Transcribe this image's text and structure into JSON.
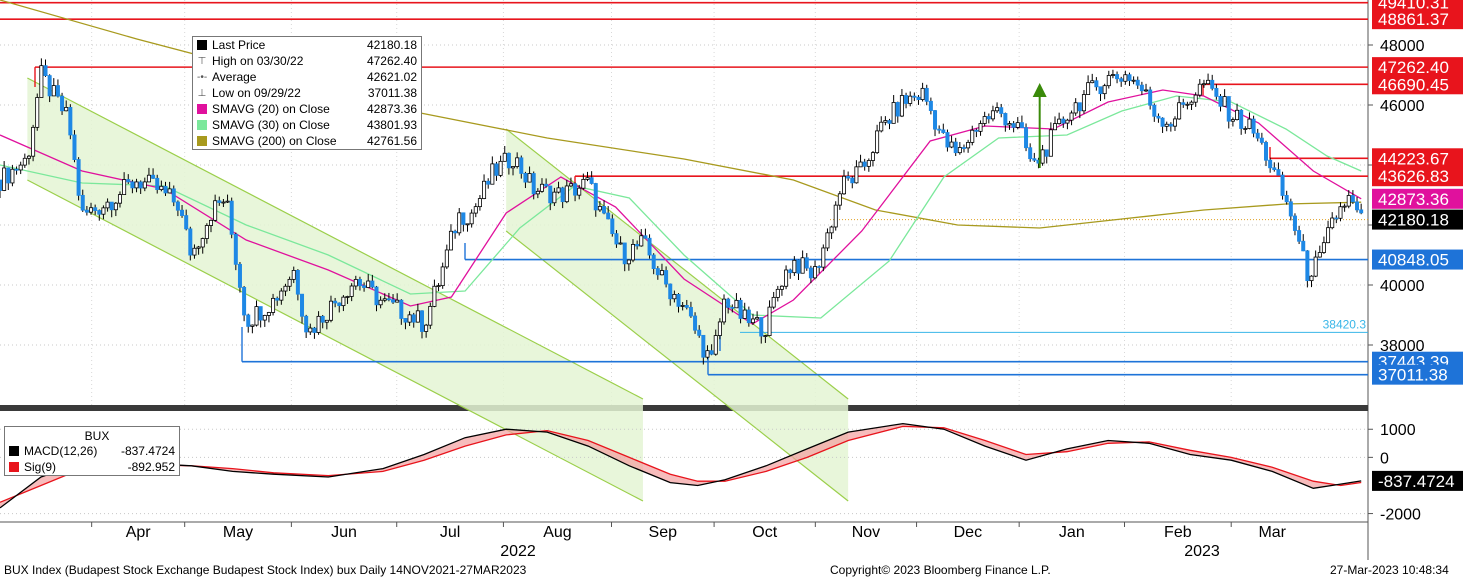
{
  "chart_data": [
    {
      "type": "candlestick",
      "title": "",
      "ylim": [
        36000,
        49500
      ],
      "y_ticks": [
        38000,
        40000,
        42000,
        44000,
        46000,
        48000
      ],
      "y_tick_labels": [
        "38000",
        "40000",
        "",
        "",
        "46000",
        "48000"
      ],
      "x_labels": [
        "Apr",
        "May",
        "Jun",
        "Jul",
        "Aug",
        "Sep",
        "Oct",
        "Nov",
        "Dec",
        "Jan",
        "Feb",
        "Mar"
      ],
      "year_labels": [
        "2022",
        "2023"
      ],
      "legend": [
        {
          "glyph": "box",
          "color": "#000000",
          "label": "Last Price",
          "value": "42180.18"
        },
        {
          "glyph": "T",
          "color": "#555555",
          "label": "High on 03/30/22",
          "value": "47262.40"
        },
        {
          "glyph": "avg",
          "color": "#555555",
          "label": "Average",
          "value": "42621.02"
        },
        {
          "glyph": "L",
          "color": "#555555",
          "label": "Low on 09/29/22",
          "value": "37011.38"
        },
        {
          "glyph": "box",
          "color": "#e0119d",
          "label": "SMAVG (20)  on Close",
          "value": "42873.36"
        },
        {
          "glyph": "box",
          "color": "#7be89b",
          "label": "SMAVG (30)  on Close",
          "value": "43801.93"
        },
        {
          "glyph": "box",
          "color": "#a89a1e",
          "label": "SMAVG (200)  on Close",
          "value": "42761.56"
        }
      ],
      "price_levels": [
        {
          "value": 49410.31,
          "label": "49410.31",
          "color": "#e8141c"
        },
        {
          "value": 48861.37,
          "label": "48861.37",
          "color": "#e8141c"
        },
        {
          "value": 47262.4,
          "label": "47262.40",
          "color": "#e8141c"
        },
        {
          "value": 46690.45,
          "label": "46690.45",
          "color": "#e8141c"
        },
        {
          "value": 44223.67,
          "label": "44223.67",
          "color": "#e8141c"
        },
        {
          "value": 43626.83,
          "label": "43626.83",
          "color": "#e8141c"
        },
        {
          "value": 40848.05,
          "label": "40848.05",
          "color": "#1e73d8"
        },
        {
          "value": 38420.3,
          "label": "38420.3",
          "color": "#39b6e8"
        },
        {
          "value": 37443.39,
          "label": "37443.39",
          "color": "#1e73d8"
        },
        {
          "value": 37011.38,
          "label": "37011.38",
          "color": "#1e73d8"
        }
      ],
      "last_labels": [
        {
          "value": 42873.36,
          "label": "42873.36",
          "color": "#e0119d"
        },
        {
          "value": 42180.18,
          "label": "42180.18",
          "color": "#000000"
        }
      ],
      "close_series": [
        {
          "t": 0.0,
          "v": 43500
        },
        {
          "t": 0.02,
          "v": 44200
        },
        {
          "t": 0.03,
          "v": 47000
        },
        {
          "t": 0.05,
          "v": 45500
        },
        {
          "t": 0.06,
          "v": 42300
        },
        {
          "t": 0.08,
          "v": 42800
        },
        {
          "t": 0.1,
          "v": 43500
        },
        {
          "t": 0.115,
          "v": 43200
        },
        {
          "t": 0.13,
          "v": 42700
        },
        {
          "t": 0.14,
          "v": 41000
        },
        {
          "t": 0.155,
          "v": 42500
        },
        {
          "t": 0.165,
          "v": 42900
        },
        {
          "t": 0.18,
          "v": 38800
        },
        {
          "t": 0.2,
          "v": 39500
        },
        {
          "t": 0.215,
          "v": 40500
        },
        {
          "t": 0.225,
          "v": 38400
        },
        {
          "t": 0.24,
          "v": 39200
        },
        {
          "t": 0.26,
          "v": 40200
        },
        {
          "t": 0.28,
          "v": 39400
        },
        {
          "t": 0.3,
          "v": 39000
        },
        {
          "t": 0.31,
          "v": 38700
        },
        {
          "t": 0.32,
          "v": 40000
        },
        {
          "t": 0.335,
          "v": 42300
        },
        {
          "t": 0.345,
          "v": 42400
        },
        {
          "t": 0.36,
          "v": 43700
        },
        {
          "t": 0.375,
          "v": 44300
        },
        {
          "t": 0.39,
          "v": 43200
        },
        {
          "t": 0.41,
          "v": 43000
        },
        {
          "t": 0.43,
          "v": 43400
        },
        {
          "t": 0.44,
          "v": 42300
        },
        {
          "t": 0.455,
          "v": 41000
        },
        {
          "t": 0.47,
          "v": 41400
        },
        {
          "t": 0.485,
          "v": 40100
        },
        {
          "t": 0.5,
          "v": 39300
        },
        {
          "t": 0.51,
          "v": 38300
        },
        {
          "t": 0.52,
          "v": 37400
        },
        {
          "t": 0.53,
          "v": 39600
        },
        {
          "t": 0.545,
          "v": 38800
        },
        {
          "t": 0.56,
          "v": 38600
        },
        {
          "t": 0.57,
          "v": 40100
        },
        {
          "t": 0.58,
          "v": 40800
        },
        {
          "t": 0.595,
          "v": 40300
        },
        {
          "t": 0.605,
          "v": 41700
        },
        {
          "t": 0.615,
          "v": 43300
        },
        {
          "t": 0.63,
          "v": 43800
        },
        {
          "t": 0.645,
          "v": 45300
        },
        {
          "t": 0.66,
          "v": 46100
        },
        {
          "t": 0.675,
          "v": 46400
        },
        {
          "t": 0.69,
          "v": 44800
        },
        {
          "t": 0.7,
          "v": 44300
        },
        {
          "t": 0.715,
          "v": 45400
        },
        {
          "t": 0.73,
          "v": 45800
        },
        {
          "t": 0.745,
          "v": 45200
        },
        {
          "t": 0.755,
          "v": 43900
        },
        {
          "t": 0.765,
          "v": 44600
        },
        {
          "t": 0.78,
          "v": 45700
        },
        {
          "t": 0.795,
          "v": 46400
        },
        {
          "t": 0.81,
          "v": 46900
        },
        {
          "t": 0.825,
          "v": 47000
        },
        {
          "t": 0.835,
          "v": 46500
        },
        {
          "t": 0.845,
          "v": 45700
        },
        {
          "t": 0.855,
          "v": 45400
        },
        {
          "t": 0.865,
          "v": 46000
        },
        {
          "t": 0.88,
          "v": 46700
        },
        {
          "t": 0.89,
          "v": 46200
        },
        {
          "t": 0.9,
          "v": 45700
        },
        {
          "t": 0.915,
          "v": 45200
        },
        {
          "t": 0.925,
          "v": 44400
        },
        {
          "t": 0.935,
          "v": 43300
        },
        {
          "t": 0.945,
          "v": 42200
        },
        {
          "t": 0.955,
          "v": 40400
        },
        {
          "t": 0.965,
          "v": 40800
        },
        {
          "t": 0.975,
          "v": 42200
        },
        {
          "t": 0.985,
          "v": 42900
        },
        {
          "t": 0.995,
          "v": 42180
        }
      ],
      "sma20": [
        [
          0,
          45000
        ],
        [
          0.06,
          43800
        ],
        [
          0.12,
          43200
        ],
        [
          0.18,
          41500
        ],
        [
          0.24,
          40500
        ],
        [
          0.3,
          39300
        ],
        [
          0.33,
          39600
        ],
        [
          0.37,
          42400
        ],
        [
          0.41,
          43600
        ],
        [
          0.45,
          42600
        ],
        [
          0.5,
          40200
        ],
        [
          0.55,
          38700
        ],
        [
          0.58,
          39500
        ],
        [
          0.63,
          41800
        ],
        [
          0.68,
          44800
        ],
        [
          0.72,
          45300
        ],
        [
          0.77,
          45200
        ],
        [
          0.81,
          46100
        ],
        [
          0.85,
          46500
        ],
        [
          0.88,
          46300
        ],
        [
          0.92,
          45400
        ],
        [
          0.96,
          43800
        ],
        [
          0.995,
          42873
        ]
      ],
      "sma30": [
        [
          0,
          44000
        ],
        [
          0.06,
          43400
        ],
        [
          0.12,
          43300
        ],
        [
          0.18,
          42000
        ],
        [
          0.24,
          41000
        ],
        [
          0.3,
          39700
        ],
        [
          0.34,
          39800
        ],
        [
          0.38,
          41900
        ],
        [
          0.42,
          43300
        ],
        [
          0.46,
          42900
        ],
        [
          0.5,
          41000
        ],
        [
          0.55,
          39000
        ],
        [
          0.6,
          38900
        ],
        [
          0.65,
          40800
        ],
        [
          0.69,
          43600
        ],
        [
          0.73,
          44900
        ],
        [
          0.78,
          45000
        ],
        [
          0.82,
          45800
        ],
        [
          0.86,
          46300
        ],
        [
          0.9,
          46100
        ],
        [
          0.94,
          45200
        ],
        [
          0.97,
          44300
        ],
        [
          0.995,
          43801
        ]
      ],
      "sma200": [
        [
          0,
          49500
        ],
        [
          0.1,
          48200
        ],
        [
          0.2,
          47000
        ],
        [
          0.3,
          45800
        ],
        [
          0.4,
          44900
        ],
        [
          0.5,
          44200
        ],
        [
          0.58,
          43500
        ],
        [
          0.64,
          42500
        ],
        [
          0.7,
          42000
        ],
        [
          0.76,
          41900
        ],
        [
          0.82,
          42200
        ],
        [
          0.88,
          42500
        ],
        [
          0.94,
          42700
        ],
        [
          0.995,
          42761
        ]
      ],
      "channels": [
        {
          "from": [
            0.02,
            46900
          ],
          "to": [
            0.47,
            36200
          ],
          "width": 3400
        },
        {
          "from": [
            0.37,
            45200
          ],
          "to": [
            0.62,
            36200
          ],
          "width": 3400
        }
      ],
      "arrow": {
        "t": 0.76,
        "from": 43900,
        "to": 46600,
        "color": "#3a8a0a"
      },
      "dotted_level": {
        "value": 42180,
        "color": "#e0a020"
      }
    },
    {
      "type": "line",
      "title": "BUX",
      "ylim": [
        -2300,
        1400
      ],
      "y_ticks": [
        -2000,
        0,
        1000
      ],
      "y_tick_labels": [
        "-2000",
        "0",
        "1000"
      ],
      "legend": [
        {
          "glyph": "box",
          "color": "#000000",
          "label": "MACD(12,26)",
          "value": "-837.4724"
        },
        {
          "glyph": "box",
          "color": "#e8141c",
          "label": "Sig(9)",
          "value": "-892.952"
        }
      ],
      "last_labels": [
        {
          "value": -837.4724,
          "label": "-837.4724",
          "color": "#000000"
        }
      ],
      "macd": [
        [
          0,
          -1800
        ],
        [
          0.03,
          -700
        ],
        [
          0.06,
          -200
        ],
        [
          0.1,
          -200
        ],
        [
          0.14,
          -300
        ],
        [
          0.17,
          -500
        ],
        [
          0.2,
          -600
        ],
        [
          0.24,
          -700
        ],
        [
          0.28,
          -400
        ],
        [
          0.31,
          100
        ],
        [
          0.34,
          700
        ],
        [
          0.37,
          1000
        ],
        [
          0.4,
          900
        ],
        [
          0.43,
          400
        ],
        [
          0.46,
          -300
        ],
        [
          0.49,
          -900
        ],
        [
          0.51,
          -1000
        ],
        [
          0.53,
          -800
        ],
        [
          0.56,
          -300
        ],
        [
          0.59,
          300
        ],
        [
          0.62,
          900
        ],
        [
          0.66,
          1200
        ],
        [
          0.69,
          1000
        ],
        [
          0.72,
          400
        ],
        [
          0.75,
          -100
        ],
        [
          0.78,
          300
        ],
        [
          0.81,
          600
        ],
        [
          0.84,
          500
        ],
        [
          0.87,
          100
        ],
        [
          0.9,
          -100
        ],
        [
          0.93,
          -500
        ],
        [
          0.96,
          -1100
        ],
        [
          0.98,
          -950
        ],
        [
          0.995,
          -837
        ]
      ],
      "signal": [
        [
          0,
          -1600
        ],
        [
          0.03,
          -1000
        ],
        [
          0.06,
          -400
        ],
        [
          0.1,
          -250
        ],
        [
          0.14,
          -300
        ],
        [
          0.17,
          -400
        ],
        [
          0.2,
          -550
        ],
        [
          0.24,
          -650
        ],
        [
          0.28,
          -500
        ],
        [
          0.31,
          -100
        ],
        [
          0.34,
          400
        ],
        [
          0.37,
          800
        ],
        [
          0.4,
          950
        ],
        [
          0.43,
          600
        ],
        [
          0.46,
          0
        ],
        [
          0.49,
          -600
        ],
        [
          0.51,
          -850
        ],
        [
          0.53,
          -850
        ],
        [
          0.56,
          -500
        ],
        [
          0.59,
          0
        ],
        [
          0.62,
          600
        ],
        [
          0.66,
          1100
        ],
        [
          0.69,
          1050
        ],
        [
          0.72,
          600
        ],
        [
          0.75,
          100
        ],
        [
          0.78,
          200
        ],
        [
          0.81,
          500
        ],
        [
          0.84,
          550
        ],
        [
          0.87,
          250
        ],
        [
          0.9,
          0
        ],
        [
          0.93,
          -350
        ],
        [
          0.96,
          -850
        ],
        [
          0.98,
          -1000
        ],
        [
          0.995,
          -893
        ]
      ]
    }
  ],
  "footer": {
    "left": "BUX Index (Budapest Stock Exchange Budapest Stock Index) bux  Daily 14NOV2021-27MAR2023",
    "center": "Copyright© 2023 Bloomberg Finance L.P.",
    "right": "27-Mar-2023 10:48:34"
  },
  "colors": {
    "red_level": "#e8141c",
    "blue_level": "#1e73d8",
    "candle": "#1e88e5",
    "channel_fill": "#e4f5d4",
    "channel_line": "#9bcf4a"
  }
}
